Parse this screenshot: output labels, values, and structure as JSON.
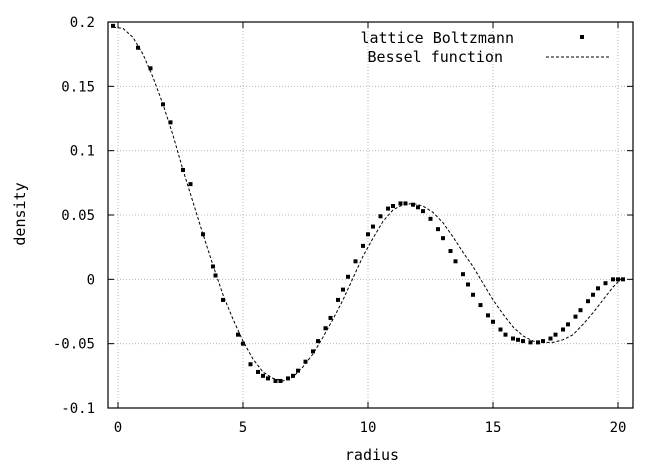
{
  "chart_data": {
    "type": "scatter",
    "xlabel": "radius",
    "ylabel": "density",
    "xlim": [
      -0.4,
      20.6
    ],
    "ylim": [
      -0.1,
      0.2
    ],
    "x_ticks": [
      0,
      5,
      10,
      15,
      20
    ],
    "x_tick_labels": [
      "0",
      "5",
      "10",
      "15",
      "20"
    ],
    "y_ticks": [
      -0.1,
      -0.05,
      0,
      0.05,
      0.1,
      0.15,
      0.2
    ],
    "y_tick_labels": [
      "-0.1",
      "-0.05",
      "0",
      "0.05",
      "0.1",
      "0.15",
      "0.2"
    ],
    "grid": true,
    "legend_position": "top-right",
    "series": [
      {
        "name": "lattice Boltzmann",
        "style": "points",
        "color": "#000000",
        "x": [
          -0.2,
          0.8,
          1.3,
          1.8,
          2.1,
          2.6,
          2.9,
          3.4,
          3.8,
          3.9,
          4.2,
          4.8,
          5.0,
          5.3,
          5.6,
          5.8,
          6.0,
          6.3,
          6.5,
          6.8,
          7.0,
          7.2,
          7.5,
          7.8,
          8.0,
          8.3,
          8.5,
          8.8,
          9.0,
          9.2,
          9.5,
          9.8,
          10.0,
          10.2,
          10.5,
          10.8,
          11.0,
          11.3,
          11.5,
          11.8,
          12.0,
          12.2,
          12.5,
          12.8,
          13.0,
          13.3,
          13.5,
          13.8,
          14.0,
          14.2,
          14.5,
          14.8,
          15.0,
          15.3,
          15.5,
          15.8,
          16.0,
          16.2,
          16.5,
          16.8,
          17.0,
          17.3,
          17.5,
          17.8,
          18.0,
          18.3,
          18.5,
          18.8,
          19.0,
          19.2,
          19.5,
          19.8,
          20.0,
          20.2
        ],
        "y": [
          0.197,
          0.18,
          0.164,
          0.136,
          0.122,
          0.085,
          0.074,
          0.035,
          0.01,
          0.003,
          -0.016,
          -0.043,
          -0.05,
          -0.066,
          -0.072,
          -0.075,
          -0.077,
          -0.079,
          -0.079,
          -0.077,
          -0.075,
          -0.071,
          -0.064,
          -0.056,
          -0.048,
          -0.038,
          -0.03,
          -0.016,
          -0.008,
          0.002,
          0.014,
          0.026,
          0.035,
          0.041,
          0.049,
          0.055,
          0.057,
          0.059,
          0.059,
          0.058,
          0.056,
          0.053,
          0.047,
          0.039,
          0.032,
          0.022,
          0.014,
          0.004,
          -0.004,
          -0.012,
          -0.02,
          -0.028,
          -0.033,
          -0.039,
          -0.043,
          -0.046,
          -0.047,
          -0.048,
          -0.049,
          -0.049,
          -0.048,
          -0.046,
          -0.043,
          -0.039,
          -0.035,
          -0.029,
          -0.024,
          -0.017,
          -0.012,
          -0.007,
          -0.003,
          0.0,
          0.0,
          0.0
        ]
      },
      {
        "name": "Bessel function",
        "style": "dashed-line",
        "color": "#000000",
        "x": [
          -0.2,
          0.2,
          0.6,
          1.0,
          1.4,
          1.8,
          2.2,
          2.6,
          3.0,
          3.4,
          3.8,
          4.2,
          4.6,
          5.0,
          5.4,
          5.8,
          6.2,
          6.6,
          7.0,
          7.4,
          7.8,
          8.2,
          8.6,
          9.0,
          9.4,
          9.8,
          10.2,
          10.6,
          11.0,
          11.4,
          11.8,
          12.2,
          12.6,
          13.0,
          13.4,
          13.8,
          14.2,
          14.6,
          15.0,
          15.4,
          15.8,
          16.2,
          16.6,
          17.0,
          17.4,
          17.8,
          18.2,
          18.6,
          19.0,
          19.4,
          19.8,
          20.2
        ],
        "y": [
          0.196,
          0.195,
          0.188,
          0.175,
          0.157,
          0.136,
          0.112,
          0.085,
          0.06,
          0.035,
          0.011,
          -0.012,
          -0.031,
          -0.048,
          -0.062,
          -0.072,
          -0.077,
          -0.079,
          -0.076,
          -0.068,
          -0.058,
          -0.045,
          -0.031,
          -0.016,
          0.001,
          0.018,
          0.032,
          0.045,
          0.054,
          0.058,
          0.059,
          0.057,
          0.052,
          0.044,
          0.033,
          0.021,
          0.01,
          -0.003,
          -0.016,
          -0.027,
          -0.037,
          -0.044,
          -0.048,
          -0.049,
          -0.049,
          -0.047,
          -0.043,
          -0.035,
          -0.026,
          -0.016,
          -0.006,
          0.002
        ]
      }
    ]
  }
}
